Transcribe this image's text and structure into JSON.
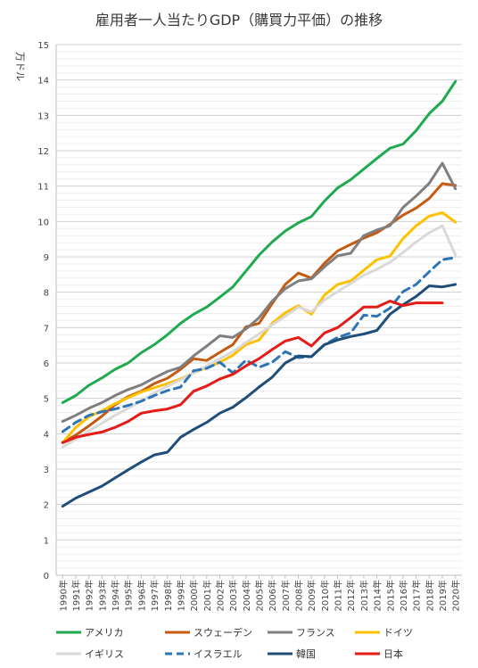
{
  "chart_data": {
    "type": "line",
    "title": "雇用者一人当たりGDP（購買力平価）の推移",
    "ylabel": "万ドル",
    "ylim": [
      0,
      15
    ],
    "yticks": [
      "0",
      "1",
      "2",
      "3",
      "4",
      "5",
      "6",
      "7",
      "8",
      "9",
      "10",
      "11",
      "12",
      "13",
      "14",
      "15"
    ],
    "grid": true,
    "legend_position": "bottom",
    "x": [
      "1990年",
      "1991年",
      "1992年",
      "1993年",
      "1994年",
      "1995年",
      "1996年",
      "1997年",
      "1998年",
      "1999年",
      "2000年",
      "2001年",
      "2002年",
      "2003年",
      "2004年",
      "2005年",
      "2006年",
      "2007年",
      "2008年",
      "2009年",
      "2010年",
      "2011年",
      "2012年",
      "2013年",
      "2014年",
      "2015年",
      "2016年",
      "2017年",
      "2018年",
      "2019年",
      "2020年"
    ],
    "series": [
      {
        "name": "アメリカ",
        "color": "#1faa4f",
        "dash": false,
        "values": [
          4.88,
          5.08,
          5.37,
          5.58,
          5.82,
          6.0,
          6.29,
          6.52,
          6.8,
          7.12,
          7.38,
          7.58,
          7.86,
          8.15,
          8.6,
          9.05,
          9.42,
          9.73,
          9.96,
          10.14,
          10.58,
          10.95,
          11.18,
          11.48,
          11.78,
          12.07,
          12.19,
          12.57,
          13.05,
          13.4,
          13.96
        ]
      },
      {
        "name": "スウェーデン",
        "color": "#c55a11",
        "dash": false,
        "values": [
          3.76,
          3.96,
          4.22,
          4.5,
          4.82,
          5.05,
          5.2,
          5.42,
          5.57,
          5.82,
          6.12,
          6.07,
          6.3,
          6.52,
          7.02,
          7.12,
          7.68,
          8.22,
          8.54,
          8.4,
          8.82,
          9.17,
          9.35,
          9.53,
          9.68,
          9.92,
          10.18,
          10.38,
          10.65,
          11.07,
          11.02
        ]
      },
      {
        "name": "フランス",
        "color": "#7f7f7f",
        "dash": false,
        "values": [
          4.35,
          4.52,
          4.72,
          4.88,
          5.08,
          5.25,
          5.38,
          5.58,
          5.76,
          5.88,
          6.2,
          6.48,
          6.77,
          6.72,
          6.96,
          7.28,
          7.75,
          8.1,
          8.32,
          8.38,
          8.72,
          9.03,
          9.1,
          9.6,
          9.76,
          9.88,
          10.4,
          10.72,
          11.08,
          11.65,
          10.92
        ]
      },
      {
        "name": "ドイツ",
        "color": "#ffc000",
        "dash": false,
        "values": [
          3.75,
          4.18,
          4.48,
          4.65,
          4.85,
          5.02,
          5.18,
          5.3,
          5.42,
          5.55,
          5.72,
          5.88,
          6.02,
          6.22,
          6.52,
          6.65,
          7.12,
          7.42,
          7.62,
          7.38,
          7.92,
          8.22,
          8.32,
          8.62,
          8.92,
          9.02,
          9.52,
          9.88,
          10.15,
          10.25,
          9.98
        ]
      },
      {
        "name": "イギリス",
        "color": "#d9d9d9",
        "dash": false,
        "values": [
          3.62,
          3.85,
          4.08,
          4.3,
          4.52,
          4.72,
          4.92,
          5.15,
          5.35,
          5.52,
          5.72,
          5.92,
          6.12,
          6.32,
          6.58,
          6.82,
          7.08,
          7.32,
          7.58,
          7.45,
          7.78,
          8.02,
          8.25,
          8.48,
          8.65,
          8.85,
          9.12,
          9.42,
          9.68,
          9.88,
          9.05
        ]
      },
      {
        "name": "イスラエル",
        "color": "#2e75b6",
        "dash": true,
        "values": [
          4.06,
          4.32,
          4.52,
          4.62,
          4.7,
          4.8,
          4.92,
          5.08,
          5.22,
          5.32,
          5.78,
          5.85,
          6.02,
          5.72,
          6.08,
          5.88,
          6.02,
          6.32,
          6.15,
          6.18,
          6.52,
          6.72,
          6.85,
          7.35,
          7.32,
          7.55,
          8.02,
          8.22,
          8.58,
          8.92,
          8.98
        ]
      },
      {
        "name": "韓国",
        "color": "#1f4e79",
        "dash": false,
        "values": [
          1.95,
          2.18,
          2.35,
          2.52,
          2.75,
          2.98,
          3.2,
          3.4,
          3.48,
          3.9,
          4.12,
          4.32,
          4.58,
          4.75,
          5.02,
          5.32,
          5.6,
          6.0,
          6.2,
          6.18,
          6.52,
          6.65,
          6.75,
          6.82,
          6.92,
          7.38,
          7.65,
          7.88,
          8.18,
          8.15,
          8.22
        ]
      },
      {
        "name": "日本",
        "color": "#e41b17",
        "dash": false,
        "values": [
          3.75,
          3.9,
          3.98,
          4.05,
          4.18,
          4.35,
          4.58,
          4.65,
          4.7,
          4.82,
          5.2,
          5.35,
          5.55,
          5.68,
          5.92,
          6.12,
          6.38,
          6.62,
          6.72,
          6.48,
          6.85,
          7.0,
          7.28,
          7.58,
          7.58,
          7.75,
          7.62,
          7.7,
          7.7,
          7.7,
          null
        ]
      }
    ]
  }
}
